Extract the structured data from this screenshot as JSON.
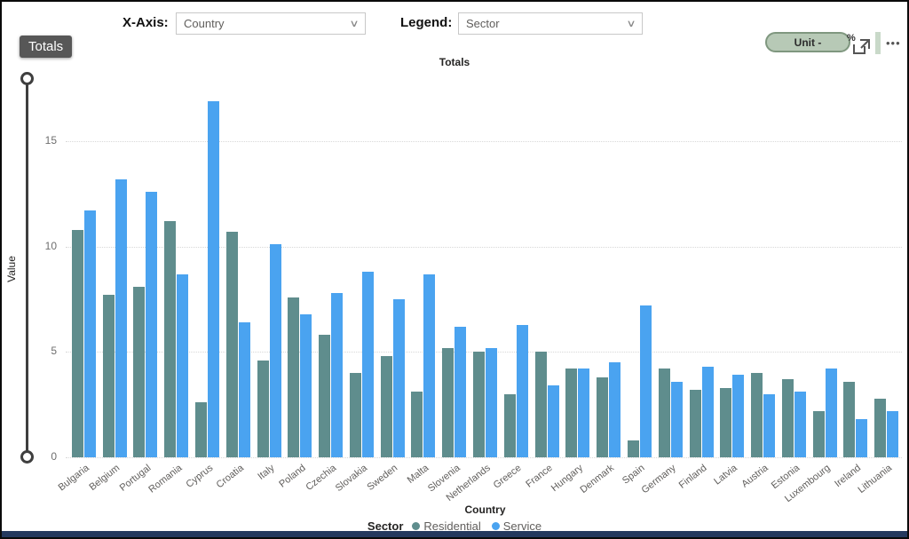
{
  "controls": {
    "x_axis_label": "X-Axis:",
    "x_axis_value": "Country",
    "legend_label": "Legend:",
    "legend_value": "Sector"
  },
  "tooltip_badge": "Totals",
  "toolbar": {
    "unit_button_label": "Unit -",
    "percent_symbol": "%",
    "more_dots": "•••"
  },
  "colors": {
    "residential": "#5f8d8d",
    "service": "#4aa3f0",
    "grid": "#d8d8d8",
    "badge_bg": "#575757",
    "pill_bg": "#b7c9b6",
    "bottom_strip": "#24395e"
  },
  "chart_data": {
    "type": "bar",
    "title": "Totals",
    "xlabel": "Country",
    "ylabel": "Value",
    "ylim": [
      0,
      18
    ],
    "yticks": [
      0,
      5,
      10,
      15
    ],
    "grid": "horizontal-dotted",
    "legend_position": "bottom",
    "legend_title": "Sector",
    "categories": [
      "Bulgaria",
      "Belgium",
      "Portugal",
      "Romania",
      "Cyprus",
      "Croatia",
      "Italy",
      "Poland",
      "Czechia",
      "Slovakia",
      "Sweden",
      "Malta",
      "Slovenia",
      "Netherlands",
      "Greece",
      "France",
      "Hungary",
      "Denmark",
      "Spain",
      "Germany",
      "Finland",
      "Latvia",
      "Austria",
      "Estonia",
      "Luxembourg",
      "Ireland",
      "Lithuania"
    ],
    "series": [
      {
        "name": "Residential",
        "color": "#5f8d8d",
        "values": [
          10.8,
          7.7,
          8.1,
          11.2,
          2.6,
          10.7,
          4.6,
          7.6,
          5.8,
          4.0,
          4.8,
          3.1,
          5.2,
          5.0,
          3.0,
          5.0,
          4.2,
          3.8,
          0.8,
          4.2,
          3.2,
          3.3,
          4.0,
          3.7,
          2.2,
          3.6,
          2.8
        ]
      },
      {
        "name": "Service",
        "color": "#4aa3f0",
        "values": [
          11.7,
          13.2,
          12.6,
          8.7,
          16.9,
          6.4,
          10.1,
          6.8,
          7.8,
          8.8,
          7.5,
          8.7,
          6.2,
          5.2,
          6.3,
          3.4,
          4.2,
          4.5,
          7.2,
          3.6,
          4.3,
          3.9,
          3.0,
          3.1,
          4.2,
          1.8,
          2.2
        ]
      }
    ]
  }
}
